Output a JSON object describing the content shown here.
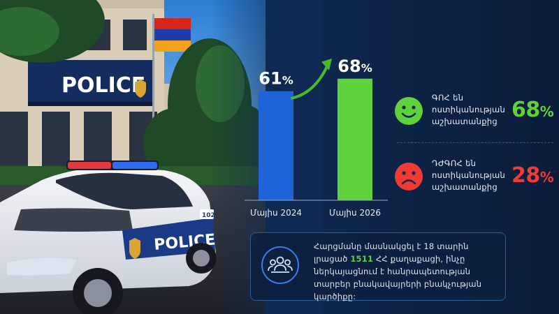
{
  "photo": {
    "building_sign": "POLICE",
    "car_door_text": "POLICE",
    "car_plate_text": "102"
  },
  "chart_data": {
    "type": "bar",
    "categories": [
      "Մայիս 2024",
      "Մայիս 2026"
    ],
    "values": [
      61,
      68
    ],
    "value_labels": [
      "61",
      "68"
    ],
    "unit": "%",
    "bar_colors": [
      "#1f63d8",
      "#5fd13a"
    ],
    "arrow_color": "#49b930",
    "ylim": [
      0,
      80
    ],
    "title": "",
    "xlabel": "",
    "ylabel": ""
  },
  "stats": {
    "satisfied": {
      "label_lines": [
        "ԳՈՀ են",
        "ոստիկանության",
        "աշխատանքից"
      ],
      "value": "68",
      "unit": "%",
      "color": "#5fd13a",
      "icon": "smile-face-icon"
    },
    "unsatisfied": {
      "label_lines": [
        "ԴԺԳՈՀ են",
        "ոստիկանության",
        "աշխատանքից"
      ],
      "value": "28",
      "unit": "%",
      "color": "#ef3b34",
      "icon": "sad-face-icon"
    }
  },
  "info": {
    "icon": "people-group-icon",
    "text_before": "Հարցմանը մասնակցել է 18 տարին լրացած ",
    "highlight": "1511",
    "text_after": " ՀՀ քաղաքացի, ինչը ներկայացնում է հանրապետության տարբեր բնակավայրերի բնակչության կարծիքը:"
  }
}
